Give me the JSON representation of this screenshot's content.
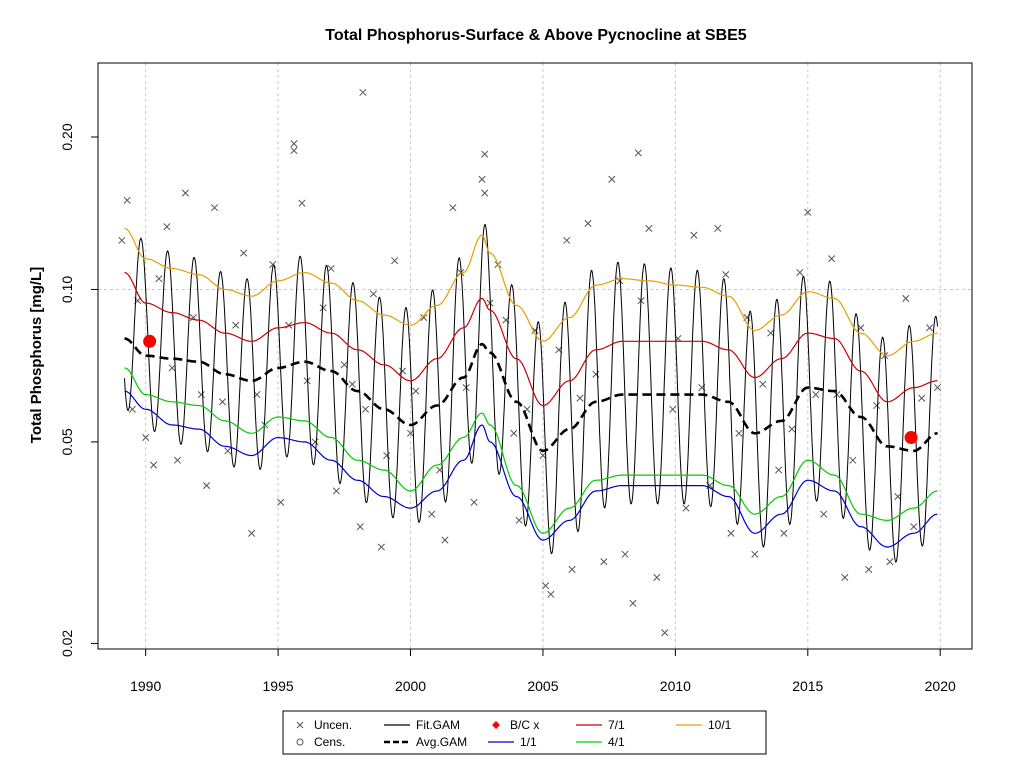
{
  "chart_data": {
    "type": "line",
    "title": "Total Phosphorus-Surface & Above Pycnocline at SBE5",
    "xlabel": "",
    "ylabel": "Total Phosphorus [mg/L]",
    "y_scale": "log",
    "xlim": [
      1988.2,
      2021.2
    ],
    "ylim": [
      0.0195,
      0.28
    ],
    "x_ticks": [
      1990,
      1995,
      2000,
      2005,
      2010,
      2015,
      2020
    ],
    "x_tick_labels": [
      "1990",
      "1995",
      "2000",
      "2005",
      "2010",
      "2015",
      "2020"
    ],
    "y_ticks": [
      0.02,
      0.05,
      0.1,
      0.2
    ],
    "y_tick_labels": [
      "0.02",
      "0.05",
      "0.10",
      "0.20"
    ],
    "grid": true,
    "reference_line_y": 0.1,
    "legend_placement": "bottom, outside plot",
    "legend": [
      {
        "label": "Uncen.",
        "symbol": "x",
        "color": "#555555"
      },
      {
        "label": "Cens.",
        "symbol": "circle",
        "color": "#555555"
      },
      {
        "label": "Fit.GAM",
        "symbol": "line",
        "color": "#000000"
      },
      {
        "label": "Avg.GAM",
        "symbol": "dashed",
        "color": "#000000"
      },
      {
        "label": "B/C x",
        "symbol": "diamond",
        "color": "#ff0000"
      },
      {
        "label": "1/1",
        "symbol": "line",
        "color": "#0000cc"
      },
      {
        "label": "4/1",
        "symbol": "line",
        "color": "#00cc00"
      },
      {
        "label": "7/1",
        "symbol": "line",
        "color": "#cc0000"
      },
      {
        "label": "10/1",
        "symbol": "line",
        "color": "#e69f00"
      }
    ],
    "series": [
      {
        "name": "Avg.GAM",
        "color": "#000000",
        "style": "dashed",
        "x": [
          1989.2,
          1990,
          1991,
          1992,
          1993,
          1994,
          1995,
          1996,
          1997,
          1998,
          1999,
          2000,
          2001,
          2002,
          2002.7,
          2003,
          2004,
          2005,
          2006,
          2007,
          2008,
          2009,
          2010,
          2011,
          2012,
          2013,
          2014,
          2015,
          2016,
          2017,
          2018,
          2019,
          2019.9
        ],
        "y": [
          0.08,
          0.074,
          0.073,
          0.072,
          0.068,
          0.066,
          0.07,
          0.072,
          0.069,
          0.063,
          0.058,
          0.054,
          0.059,
          0.067,
          0.078,
          0.075,
          0.06,
          0.048,
          0.053,
          0.06,
          0.062,
          0.062,
          0.062,
          0.062,
          0.06,
          0.052,
          0.055,
          0.064,
          0.063,
          0.056,
          0.049,
          0.048,
          0.052
        ]
      },
      {
        "name": "1/1",
        "color": "#0000cc",
        "style": "solid",
        "x": [
          1989.2,
          1990,
          1991,
          1992,
          1993,
          1994,
          1995,
          1996,
          1997,
          1998,
          1999,
          2000,
          2001,
          2002,
          2002.7,
          2003,
          2004,
          2005,
          2006,
          2007,
          2008,
          2009,
          2010,
          2011,
          2012,
          2013,
          2014,
          2015,
          2016,
          2017,
          2018,
          2019,
          2019.9
        ],
        "y": [
          0.063,
          0.058,
          0.054,
          0.053,
          0.049,
          0.047,
          0.051,
          0.05,
          0.046,
          0.042,
          0.039,
          0.037,
          0.04,
          0.046,
          0.054,
          0.05,
          0.039,
          0.032,
          0.035,
          0.04,
          0.041,
          0.041,
          0.041,
          0.041,
          0.039,
          0.033,
          0.036,
          0.042,
          0.04,
          0.034,
          0.031,
          0.033,
          0.036
        ]
      },
      {
        "name": "4/1",
        "color": "#00cc00",
        "style": "solid",
        "x": [
          1989.2,
          1990,
          1991,
          1992,
          1993,
          1994,
          1995,
          1996,
          1997,
          1998,
          1999,
          2000,
          2001,
          2002,
          2002.7,
          2003,
          2004,
          2005,
          2006,
          2007,
          2008,
          2009,
          2010,
          2011,
          2012,
          2013,
          2014,
          2015,
          2016,
          2017,
          2018,
          2019,
          2019.9
        ],
        "y": [
          0.07,
          0.062,
          0.06,
          0.059,
          0.055,
          0.052,
          0.056,
          0.055,
          0.051,
          0.046,
          0.044,
          0.04,
          0.045,
          0.051,
          0.057,
          0.054,
          0.041,
          0.033,
          0.037,
          0.042,
          0.043,
          0.043,
          0.043,
          0.043,
          0.041,
          0.036,
          0.039,
          0.046,
          0.043,
          0.036,
          0.035,
          0.037,
          0.04
        ]
      },
      {
        "name": "7/1",
        "color": "#cc0000",
        "style": "solid",
        "x": [
          1989.2,
          1990,
          1991,
          1992,
          1993,
          1994,
          1995,
          1996,
          1997,
          1998,
          1999,
          2000,
          2001,
          2002,
          2002.7,
          2003,
          2004,
          2005,
          2006,
          2007,
          2008,
          2009,
          2010,
          2011,
          2012,
          2013,
          2014,
          2015,
          2016,
          2017,
          2018,
          2019,
          2019.9
        ],
        "y": [
          0.108,
          0.094,
          0.09,
          0.087,
          0.082,
          0.079,
          0.084,
          0.086,
          0.082,
          0.076,
          0.071,
          0.066,
          0.073,
          0.084,
          0.096,
          0.091,
          0.073,
          0.059,
          0.066,
          0.076,
          0.079,
          0.079,
          0.079,
          0.079,
          0.076,
          0.067,
          0.073,
          0.082,
          0.08,
          0.069,
          0.06,
          0.064,
          0.066
        ]
      },
      {
        "name": "10/1",
        "color": "#e69f00",
        "style": "solid",
        "x": [
          1989.2,
          1990,
          1991,
          1992,
          1993,
          1994,
          1995,
          1996,
          1997,
          1998,
          1999,
          2000,
          2001,
          2002,
          2002.7,
          2003,
          2004,
          2005,
          2006,
          2007,
          2008,
          2009,
          2010,
          2011,
          2012,
          2013,
          2014,
          2015,
          2016,
          2017,
          2018,
          2019,
          2019.9
        ],
        "y": [
          0.132,
          0.115,
          0.11,
          0.107,
          0.1,
          0.097,
          0.104,
          0.108,
          0.103,
          0.095,
          0.089,
          0.085,
          0.093,
          0.108,
          0.128,
          0.118,
          0.093,
          0.079,
          0.088,
          0.102,
          0.105,
          0.104,
          0.102,
          0.101,
          0.097,
          0.083,
          0.089,
          0.099,
          0.096,
          0.082,
          0.074,
          0.079,
          0.082
        ]
      },
      {
        "name": "Fit.GAM",
        "color": "#000000",
        "style": "solid",
        "generated": "seasonal oscillation between 1/1 and 10/1 envelope, one cycle per year, peaks near Oct-Nov, troughs near Apr-May",
        "x": [],
        "y": []
      }
    ],
    "b_c_points": [
      {
        "x": 1990.15,
        "y": 0.079
      },
      {
        "x": 2018.9,
        "y": 0.051
      }
    ],
    "observations": {
      "x": [
        1989.1,
        1989.3,
        1989.5,
        1989.7,
        1990.0,
        1990.3,
        1990.5,
        1990.8,
        1991.0,
        1991.2,
        1991.5,
        1991.8,
        1992.1,
        1992.3,
        1992.6,
        1992.9,
        1993.1,
        1993.4,
        1993.7,
        1994.0,
        1994.2,
        1994.5,
        1994.8,
        1995.1,
        1995.4,
        1995.6,
        1995.9,
        1996.1,
        1996.4,
        1996.7,
        1997.0,
        1997.2,
        1997.5,
        1997.8,
        1998.1,
        1998.3,
        1998.6,
        1998.9,
        1999.1,
        1999.4,
        1999.7,
        2000.0,
        2000.2,
        2000.5,
        2000.8,
        2001.1,
        2001.3,
        2001.6,
        2001.9,
        2002.1,
        2002.4,
        2002.7,
        2002.8,
        2003.0,
        2003.3,
        2003.6,
        2003.9,
        2004.1,
        2004.4,
        2004.7,
        2005.0,
        2005.1,
        2005.3,
        2005.6,
        2005.9,
        2006.1,
        2006.4,
        2006.7,
        2007.0,
        2007.3,
        2007.6,
        2007.9,
        2008.1,
        2008.4,
        2008.7,
        2009.0,
        2009.3,
        2009.6,
        2009.9,
        2010.1,
        2010.4,
        2010.7,
        2011.0,
        2011.3,
        2011.6,
        2011.9,
        2012.1,
        2012.4,
        2012.7,
        2013.0,
        2013.3,
        2013.6,
        2013.9,
        2014.1,
        2014.4,
        2014.7,
        2015.0,
        2015.3,
        2015.6,
        2015.9,
        2016.1,
        2016.4,
        2016.7,
        2017.0,
        2017.3,
        2017.6,
        2017.9,
        2018.1,
        2018.4,
        2018.7,
        2019.0,
        2019.3,
        2019.6,
        2019.9,
        1998.2,
        1995.6,
        2002.8,
        2008.6
      ],
      "y": [
        0.125,
        0.15,
        0.058,
        0.095,
        0.051,
        0.045,
        0.105,
        0.133,
        0.07,
        0.046,
        0.155,
        0.088,
        0.062,
        0.041,
        0.145,
        0.06,
        0.048,
        0.085,
        0.118,
        0.033,
        0.062,
        0.054,
        0.112,
        0.038,
        0.085,
        0.194,
        0.148,
        0.066,
        0.05,
        0.092,
        0.11,
        0.04,
        0.071,
        0.065,
        0.034,
        0.058,
        0.098,
        0.031,
        0.047,
        0.114,
        0.069,
        0.052,
        0.063,
        0.088,
        0.036,
        0.044,
        0.032,
        0.145,
        0.108,
        0.064,
        0.038,
        0.165,
        0.155,
        0.094,
        0.112,
        0.087,
        0.052,
        0.035,
        0.058,
        0.083,
        0.047,
        0.026,
        0.025,
        0.076,
        0.125,
        0.028,
        0.061,
        0.135,
        0.068,
        0.029,
        0.165,
        0.104,
        0.03,
        0.024,
        0.095,
        0.132,
        0.027,
        0.021,
        0.058,
        0.08,
        0.037,
        0.128,
        0.064,
        0.041,
        0.132,
        0.107,
        0.033,
        0.052,
        0.088,
        0.03,
        0.065,
        0.082,
        0.044,
        0.033,
        0.053,
        0.108,
        0.142,
        0.062,
        0.036,
        0.115,
        0.062,
        0.027,
        0.046,
        0.084,
        0.028,
        0.059,
        0.074,
        0.029,
        0.039,
        0.096,
        0.034,
        0.061,
        0.084,
        0.064,
        0.245,
        0.188,
        0.185,
        0.186
      ]
    }
  }
}
